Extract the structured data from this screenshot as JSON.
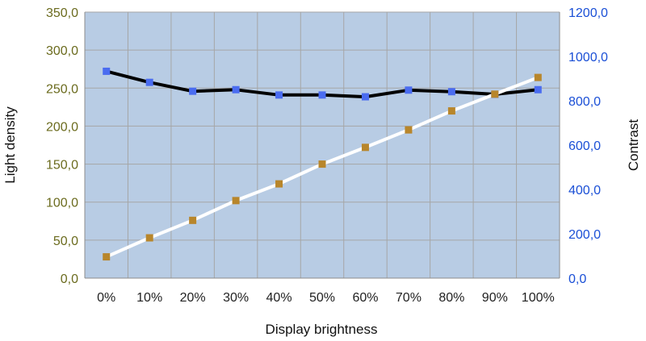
{
  "chart_data": {
    "type": "line",
    "xlabel": "Display brightness",
    "y_left_label": "Light density",
    "y_right_label": "Contrast",
    "categories": [
      "0%",
      "10%",
      "20%",
      "30%",
      "40%",
      "50%",
      "60%",
      "70%",
      "80%",
      "90%",
      "100%"
    ],
    "y_left_ticks": [
      "0,0",
      "50,0",
      "100,0",
      "150,0",
      "200,0",
      "250,0",
      "300,0",
      "350,0"
    ],
    "y_right_ticks": [
      "0,0",
      "200,0",
      "400,0",
      "600,0",
      "800,0",
      "1000,0",
      "1200,0"
    ],
    "y_left_range": [
      0,
      350
    ],
    "y_right_range": [
      0,
      1200
    ],
    "grid": true,
    "plot_background": "#b8cce4",
    "grid_color": "#a6a6a6",
    "left_axis_color": "#6b6b1e",
    "right_axis_color": "#1a4fd6",
    "series": [
      {
        "axis": "right",
        "line_color": "#000000",
        "marker_color": "#4a6cf0",
        "values": [
          933,
          883,
          843,
          850,
          826,
          826,
          818,
          848,
          841,
          829,
          850
        ]
      },
      {
        "axis": "left",
        "line_color": "#ffffff",
        "marker_color": "#b8862b",
        "values": [
          28,
          53,
          76,
          102,
          124,
          150,
          172,
          195,
          220,
          242,
          264
        ]
      }
    ]
  }
}
